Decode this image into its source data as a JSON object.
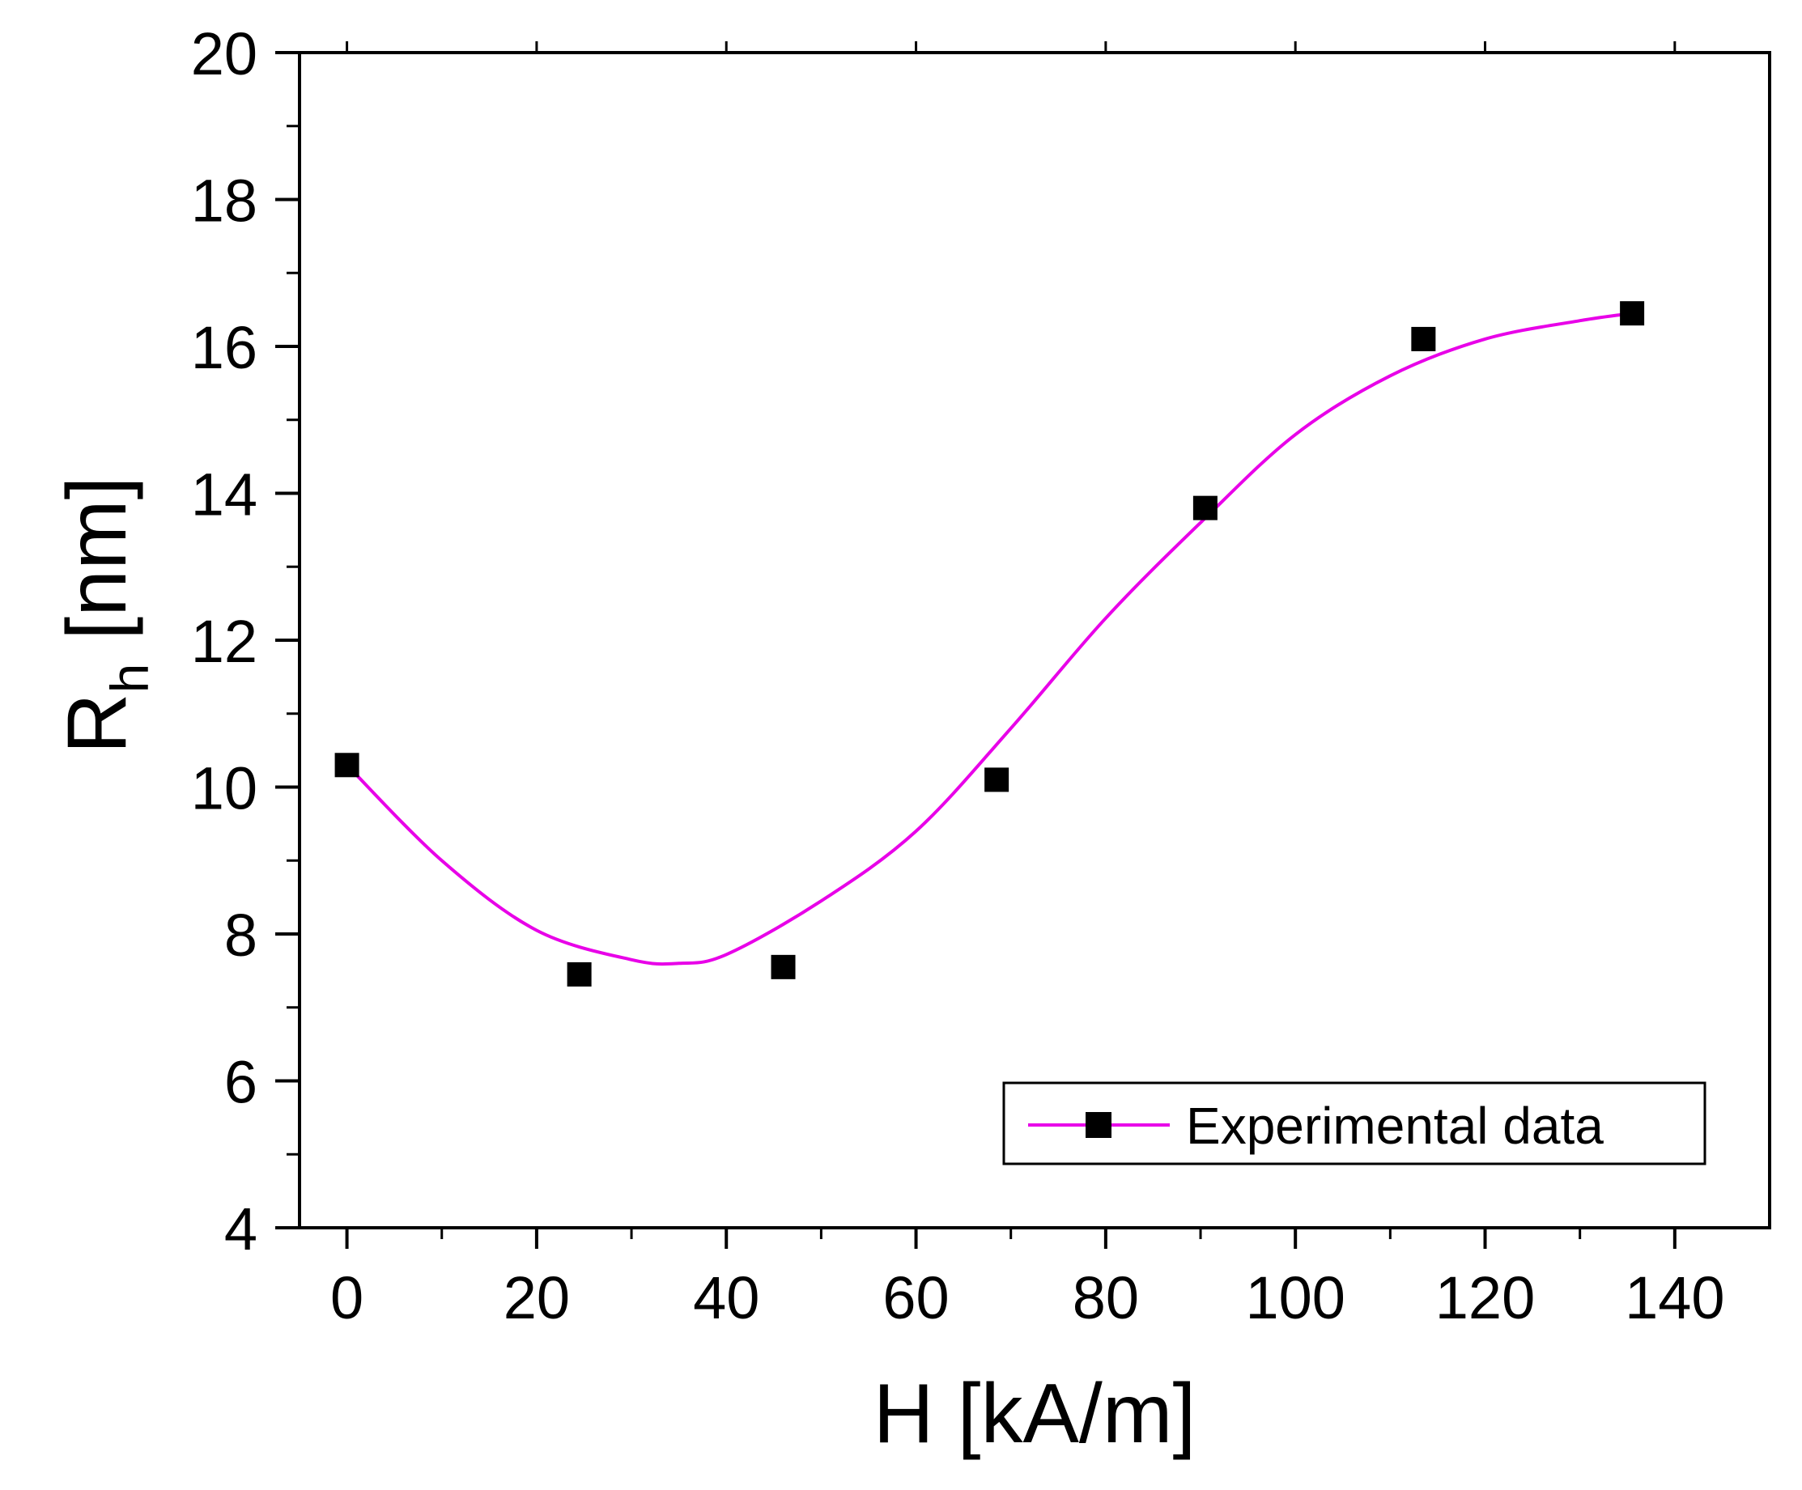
{
  "chart_data": {
    "type": "scatter",
    "xlabel": "H [kA/m]",
    "ylabel_main": "R",
    "ylabel_sub": "h",
    "ylabel_unit": " [nm]",
    "xlim": [
      -5,
      150
    ],
    "ylim": [
      4,
      20
    ],
    "xticks": [
      0,
      20,
      40,
      60,
      80,
      100,
      120,
      140
    ],
    "yticks": [
      4,
      6,
      8,
      10,
      12,
      14,
      16,
      18,
      20
    ],
    "grid": false,
    "legend_position": "bottom-right",
    "series": [
      {
        "name": "Experimental data",
        "marker": "square",
        "marker_color": "#000000",
        "line_color": "#e800e8",
        "x": [
          0,
          24.5,
          46,
          68.5,
          90.5,
          113.5,
          135.5
        ],
        "y": [
          10.3,
          7.45,
          7.55,
          10.1,
          13.8,
          16.1,
          16.45
        ]
      }
    ],
    "fit_curve": {
      "color": "#e800e8",
      "x": [
        0,
        10,
        20,
        30,
        35,
        40,
        50,
        60,
        70,
        80,
        90,
        100,
        110,
        120,
        130,
        135.5
      ],
      "y": [
        10.3,
        9.0,
        8.05,
        7.65,
        7.6,
        7.72,
        8.45,
        9.4,
        10.8,
        12.3,
        13.6,
        14.8,
        15.6,
        16.1,
        16.35,
        16.45
      ]
    }
  }
}
